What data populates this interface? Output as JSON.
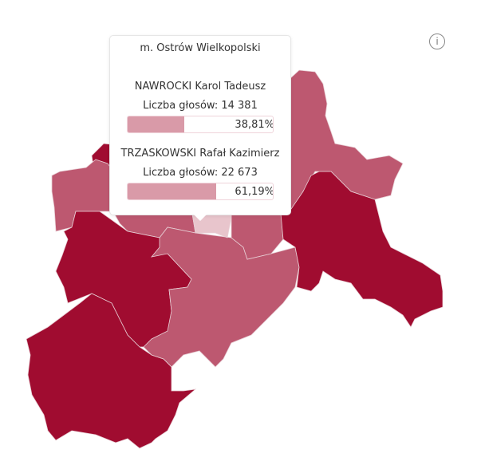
{
  "colors": {
    "dark": "#a00c30",
    "medium": "#bd5870",
    "light": "#e8c5cc",
    "bar_fill": "#d99aa8"
  },
  "info_icon": {
    "name": "info-icon",
    "glyph": "i"
  },
  "tooltip": {
    "title": "m. Ostrów Wielkopolski",
    "candidates": [
      {
        "name": "NAWROCKI Karol Tadeusz",
        "votes_label": "Liczba głosów: 14 381",
        "percent_label": "38,81%",
        "percent": 38.81
      },
      {
        "name": "TRZASKOWSKI Rafał Kazimierz",
        "votes_label": "Liczba głosów: 22 673",
        "percent_label": "61,19%",
        "percent": 61.19
      }
    ]
  }
}
